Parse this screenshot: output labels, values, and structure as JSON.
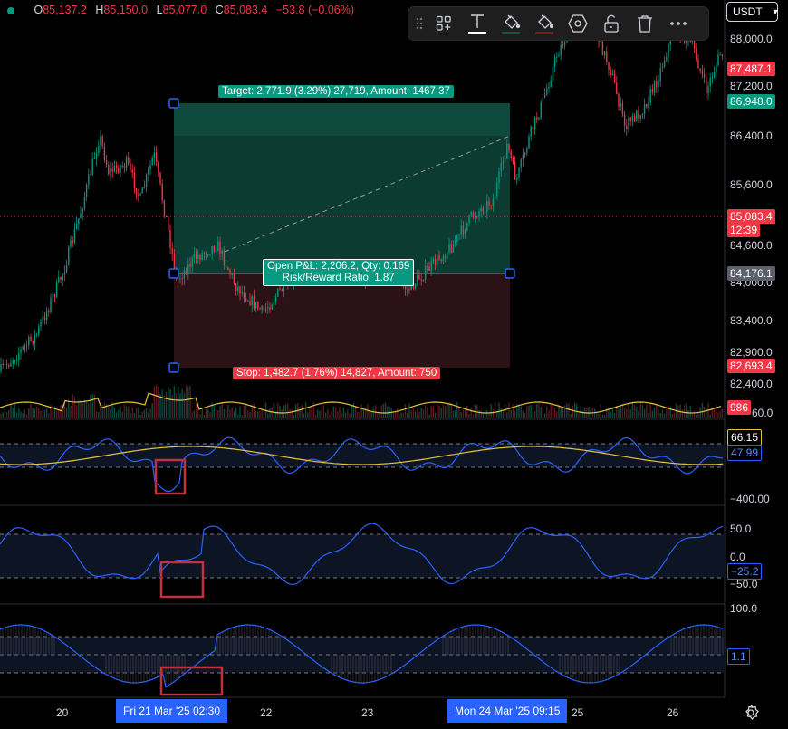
{
  "ohlc": {
    "o_key": "O",
    "o_val": "85,137.2",
    "h_key": "H",
    "h_val": "85,150.0",
    "l_key": "L",
    "l_val": "85,077.0",
    "c_key": "C",
    "c_val": "85,083.4",
    "chg": "−53.8 (−0.06%)"
  },
  "toolbar": {
    "icons": [
      "drag-handle-icon",
      "add-to-layout-icon",
      "text-icon",
      "fill-bucket-icon",
      "border-color-icon",
      "settings-hexagon-icon",
      "lock-open-icon",
      "trash-icon",
      "more-icon"
    ]
  },
  "currency": {
    "label": "USDT"
  },
  "price_axis": [
    "88,000.0",
    "87,200.0",
    "86,400.0",
    "85,600.0",
    "84,600.0",
    "84,000.0",
    "83,400.0",
    "82,900.0",
    "82,400.0",
    "60.0"
  ],
  "price_tags": {
    "high": "87,487.1",
    "target": "86,948.0",
    "current": "85,083.4",
    "countdown": "12:39",
    "entry": "84,176.1",
    "stop": "82,693.4",
    "volume": "986"
  },
  "position": {
    "target_label": "Target: 2,771.9 (3.29%) 27,719, Amount: 1467.37",
    "pnl_line1": "Open P&L: 2,206.2, Qty: 0.169",
    "pnl_line2": "Risk/Reward Ratio: 1.87",
    "stop_label": "Stop: 1,482.7 (1.76%) 14,827, Amount: 750"
  },
  "ind1": {
    "axis": [
      "−400.00"
    ],
    "val_yellow": "66.15",
    "val_blue": "47.99"
  },
  "ind2": {
    "axis": [
      "50.0",
      "0.0",
      "−50.0"
    ],
    "val": "−25.2"
  },
  "ind3": {
    "axis": [
      "100.0"
    ],
    "val": "1.1"
  },
  "time_axis": {
    "labels": [
      "20",
      "22",
      "23",
      "25",
      "26"
    ],
    "sel1": "Fri 21 Mar '25   02:30",
    "sel2": "Mon 24 Mar '25   09:15"
  },
  "colors": {
    "bg": "#000000",
    "up": "#089981",
    "down": "#f23645",
    "blue": "#2962ff",
    "yellow": "#e8c23a",
    "target_zone": "#0c3b32",
    "stop_zone": "#2a1216",
    "highlight": "#c2303d"
  }
}
